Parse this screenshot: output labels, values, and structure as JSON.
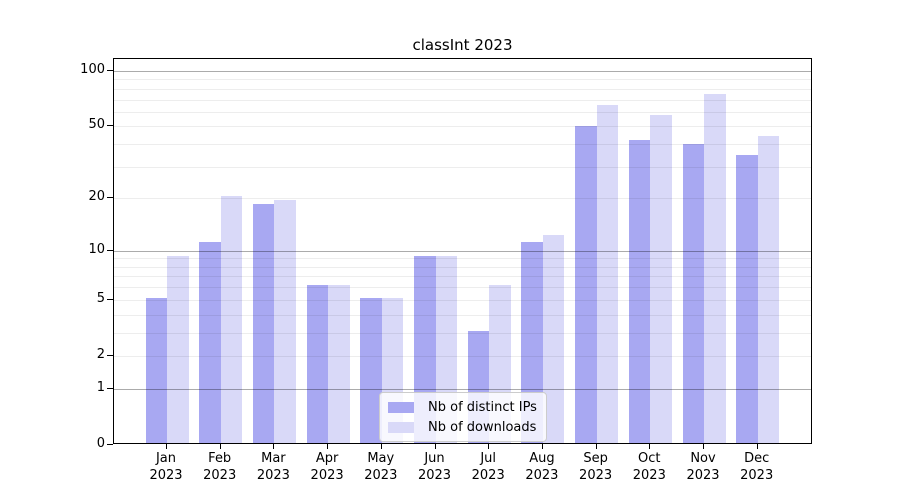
{
  "chart_data": {
    "type": "bar",
    "title": "classInt 2023",
    "categories": [
      "Jan",
      "Feb",
      "Mar",
      "Apr",
      "May",
      "Jun",
      "Jul",
      "Aug",
      "Sep",
      "Oct",
      "Nov",
      "Dec"
    ],
    "category_year": "2023",
    "series": [
      {
        "name": "Nb of distinct IPs",
        "color": "#a8a8f2",
        "values": [
          5,
          11,
          18,
          6,
          5,
          9,
          3,
          11,
          49,
          41,
          39,
          34
        ]
      },
      {
        "name": "Nb of downloads",
        "color": "#d9d9f8",
        "values": [
          9,
          20,
          19,
          6,
          5,
          9,
          6,
          12,
          64,
          56,
          73,
          43
        ]
      }
    ],
    "xlabel": "",
    "ylabel": "",
    "yscale": "log1p",
    "ylim": [
      0,
      116
    ],
    "yticks": [
      0,
      1,
      2,
      5,
      10,
      20,
      50,
      100
    ],
    "grid": {
      "minor": [
        2,
        3,
        4,
        5,
        6,
        7,
        8,
        9,
        20,
        30,
        40,
        50,
        60,
        70,
        80,
        90
      ],
      "major": [
        1,
        10,
        100
      ]
    },
    "legend": {
      "position": "lower center inside"
    }
  }
}
